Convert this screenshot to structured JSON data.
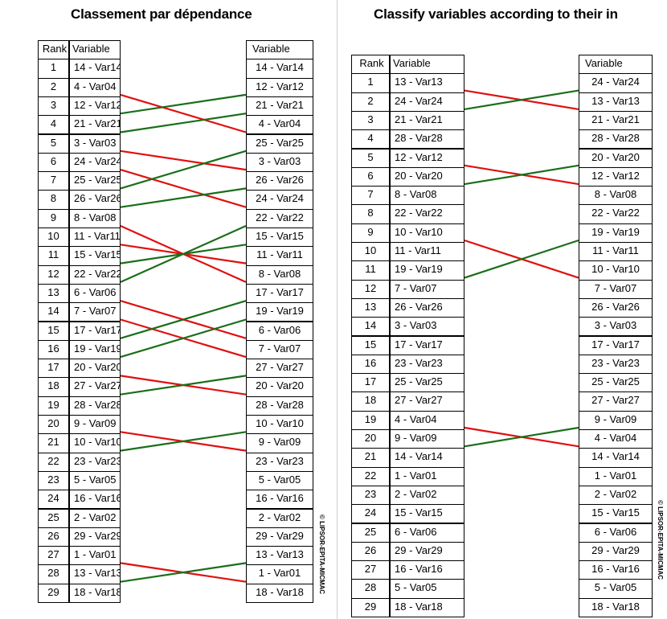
{
  "colors": {
    "rank_down": "#e01010",
    "rank_up": "#1a6e1a"
  },
  "panels": [
    {
      "id": "left",
      "title": "Classement par dépendance",
      "headers": {
        "rank": "Rank",
        "variable": "Variable",
        "variable_right": "Variable"
      },
      "watermark": "© LIPSOR-EPITA-MICMAC",
      "rows": [
        {
          "rank": "1",
          "left": "14 - Var14",
          "right": "14 - Var14"
        },
        {
          "rank": "2",
          "left": "4 - Var04",
          "right": "12 - Var12"
        },
        {
          "rank": "3",
          "left": "12 - Var12",
          "right": "21 - Var21"
        },
        {
          "rank": "4",
          "left": "21 - Var21",
          "right": "4 - Var04"
        },
        {
          "rank": "5",
          "left": "3 - Var03",
          "right": "25 - Var25"
        },
        {
          "rank": "6",
          "left": "24 - Var24",
          "right": "3 - Var03"
        },
        {
          "rank": "7",
          "left": "25 - Var25",
          "right": "26 - Var26"
        },
        {
          "rank": "8",
          "left": "26 - Var26",
          "right": "24 - Var24"
        },
        {
          "rank": "9",
          "left": "8 - Var08",
          "right": "22 - Var22"
        },
        {
          "rank": "10",
          "left": "11 - Var11",
          "right": "15 - Var15"
        },
        {
          "rank": "11",
          "left": "15 - Var15",
          "right": "11 - Var11"
        },
        {
          "rank": "12",
          "left": "22 - Var22",
          "right": "8 - Var08"
        },
        {
          "rank": "13",
          "left": "6 - Var06",
          "right": "17 - Var17"
        },
        {
          "rank": "14",
          "left": "7 - Var07",
          "right": "19 - Var19"
        },
        {
          "rank": "15",
          "left": "17 - Var17",
          "right": "6 - Var06"
        },
        {
          "rank": "16",
          "left": "19 - Var19",
          "right": "7 - Var07"
        },
        {
          "rank": "17",
          "left": "20 - Var20",
          "right": "27 - Var27"
        },
        {
          "rank": "18",
          "left": "27 - Var27",
          "right": "20 - Var20"
        },
        {
          "rank": "19",
          "left": "28 - Var28",
          "right": "28 - Var28"
        },
        {
          "rank": "20",
          "left": "9 - Var09",
          "right": "10 - Var10"
        },
        {
          "rank": "21",
          "left": "10 - Var10",
          "right": "9 - Var09"
        },
        {
          "rank": "22",
          "left": "23 - Var23",
          "right": "23 - Var23"
        },
        {
          "rank": "23",
          "left": "5 - Var05",
          "right": "5 - Var05"
        },
        {
          "rank": "24",
          "left": "16 - Var16",
          "right": "16 - Var16"
        },
        {
          "rank": "25",
          "left": "2 - Var02",
          "right": "2 - Var02"
        },
        {
          "rank": "26",
          "left": "29 - Var29",
          "right": "29 - Var29"
        },
        {
          "rank": "27",
          "left": "1 - Var01",
          "right": "13 - Var13"
        },
        {
          "rank": "28",
          "left": "13 - Var13",
          "right": "1 - Var01"
        },
        {
          "rank": "29",
          "left": "18 - Var18",
          "right": "18 - Var18"
        }
      ]
    },
    {
      "id": "right",
      "title": "Classify variables according to their in",
      "headers": {
        "rank": "Rank",
        "variable": "Variable",
        "variable_right": "Variable"
      },
      "watermark": "© LIPSOR-EPITA-MICMAC",
      "rows": [
        {
          "rank": "1",
          "left": "13 - Var13",
          "right": "24 - Var24"
        },
        {
          "rank": "2",
          "left": "24 - Var24",
          "right": "13 - Var13"
        },
        {
          "rank": "3",
          "left": "21 - Var21",
          "right": "21 - Var21"
        },
        {
          "rank": "4",
          "left": "28 - Var28",
          "right": "28 - Var28"
        },
        {
          "rank": "5",
          "left": "12 - Var12",
          "right": "20 - Var20"
        },
        {
          "rank": "6",
          "left": "20 - Var20",
          "right": "12 - Var12"
        },
        {
          "rank": "7",
          "left": "8 - Var08",
          "right": "8 - Var08"
        },
        {
          "rank": "8",
          "left": "22 - Var22",
          "right": "22 - Var22"
        },
        {
          "rank": "9",
          "left": "10 - Var10",
          "right": "19 - Var19"
        },
        {
          "rank": "10",
          "left": "11 - Var11",
          "right": "11 - Var11"
        },
        {
          "rank": "11",
          "left": "19 - Var19",
          "right": "10 - Var10"
        },
        {
          "rank": "12",
          "left": "7 - Var07",
          "right": "7 - Var07"
        },
        {
          "rank": "13",
          "left": "26 - Var26",
          "right": "26 - Var26"
        },
        {
          "rank": "14",
          "left": "3 - Var03",
          "right": "3 - Var03"
        },
        {
          "rank": "15",
          "left": "17 - Var17",
          "right": "17 - Var17"
        },
        {
          "rank": "16",
          "left": "23 - Var23",
          "right": "23 - Var23"
        },
        {
          "rank": "17",
          "left": "25 - Var25",
          "right": "25 - Var25"
        },
        {
          "rank": "18",
          "left": "27 - Var27",
          "right": "27 - Var27"
        },
        {
          "rank": "19",
          "left": "4 - Var04",
          "right": "9 - Var09"
        },
        {
          "rank": "20",
          "left": "9 - Var09",
          "right": "4 - Var04"
        },
        {
          "rank": "21",
          "left": "14 - Var14",
          "right": "14 - Var14"
        },
        {
          "rank": "22",
          "left": "1 - Var01",
          "right": "1 - Var01"
        },
        {
          "rank": "23",
          "left": "2 - Var02",
          "right": "2 - Var02"
        },
        {
          "rank": "24",
          "left": "15 - Var15",
          "right": "15 - Var15"
        },
        {
          "rank": "25",
          "left": "6 - Var06",
          "right": "6 - Var06"
        },
        {
          "rank": "26",
          "left": "29 - Var29",
          "right": "29 - Var29"
        },
        {
          "rank": "27",
          "left": "16 - Var16",
          "right": "16 - Var16"
        },
        {
          "rank": "28",
          "left": "5 - Var05",
          "right": "5 - Var05"
        },
        {
          "rank": "29",
          "left": "18 - Var18",
          "right": "18 - Var18"
        }
      ]
    }
  ]
}
